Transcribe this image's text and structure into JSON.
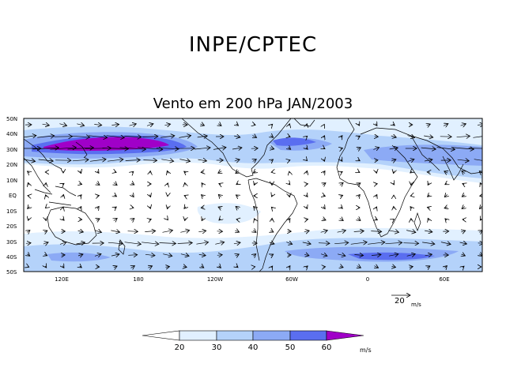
{
  "header": {
    "organization": "INPE/CPTEC",
    "map_title": "Vento em 200 hPa JAN/2003"
  },
  "map": {
    "lat_labels": [
      "50N",
      "40N",
      "30N",
      "20N",
      "10N",
      "EQ",
      "10S",
      "20S",
      "30S",
      "40S",
      "50S"
    ],
    "lon_labels": [
      "120E",
      "180",
      "120W",
      "60W",
      "0",
      "60E"
    ],
    "reference_vector": {
      "value": "20",
      "unit": "m/s"
    }
  },
  "colorbar": {
    "tick_labels": [
      "20",
      "30",
      "40",
      "50",
      "60"
    ],
    "unit": "m/s",
    "colors": [
      "#ffffff",
      "#e1f0ff",
      "#b4d2fa",
      "#8caaf5",
      "#5a6ef0",
      "#a000c8"
    ]
  }
}
